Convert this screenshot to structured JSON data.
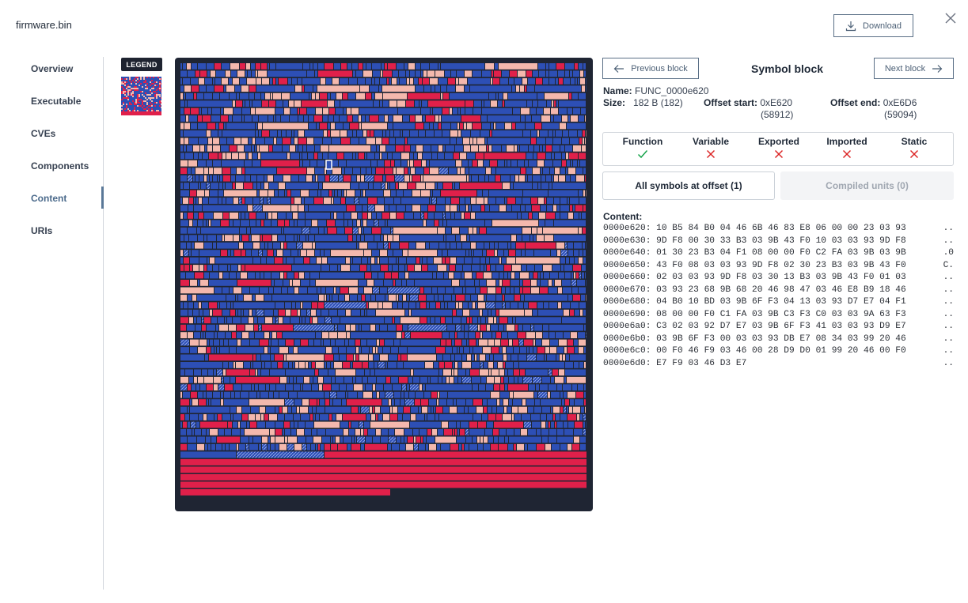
{
  "header": {
    "file_name": "firmware.bin",
    "download_label": "Download"
  },
  "sidebar": {
    "items": [
      {
        "label": "Overview",
        "active": false
      },
      {
        "label": "Executable",
        "active": false
      },
      {
        "label": "CVEs",
        "active": false
      },
      {
        "label": "Components",
        "active": false
      },
      {
        "label": "Content",
        "active": true
      },
      {
        "label": "URIs",
        "active": false
      }
    ]
  },
  "legend": {
    "label": "LEGEND"
  },
  "colors": {
    "function_block": "#2d4fb5",
    "variable_block": "#e0204a",
    "data_block": "#f4b8ad",
    "map_background": "#1f2533",
    "check": "#16a34a",
    "cross": "#dc2626"
  },
  "block": {
    "title": "Symbol block",
    "prev_label": "Previous block",
    "next_label": "Next block",
    "name_label": "Name:",
    "name_value": "FUNC_0000e620",
    "size_label": "Size:",
    "size_value": "182 B (182)",
    "offset_start_label": "Offset start:",
    "offset_start_hex": "0xE620",
    "offset_start_dec": "(58912)",
    "offset_end_label": "Offset end:",
    "offset_end_hex": "0xE6D6",
    "offset_end_dec": "(59094)"
  },
  "flags": [
    {
      "label": "Function",
      "value": true
    },
    {
      "label": "Variable",
      "value": false
    },
    {
      "label": "Exported",
      "value": false
    },
    {
      "label": "Imported",
      "value": false
    },
    {
      "label": "Static",
      "value": false
    }
  ],
  "tabs": {
    "all_symbols": "All symbols at offset (1)",
    "compiled_units": "Compiled units (0)"
  },
  "content": {
    "label": "Content:",
    "rows": [
      {
        "offset": "0000e620:",
        "bytes": "10 B5 84 B0 04 46 6B 46 83 E8 06 00 00 23 03 93",
        "ascii": ".."
      },
      {
        "offset": "0000e630:",
        "bytes": "9D F8 00 30 33 B3 03 9B 43 F0 10 03 03 93 9D F8",
        "ascii": ".."
      },
      {
        "offset": "0000e640:",
        "bytes": "01 30 23 B3 04 F1 08 00 00 F0 C2 FA 03 9B 03 9B",
        "ascii": ".0"
      },
      {
        "offset": "0000e650:",
        "bytes": "43 F0 08 03 03 93 9D F8 02 30 23 B3 03 9B 43 F0",
        "ascii": "C."
      },
      {
        "offset": "0000e660:",
        "bytes": "02 03 03 93 9D F8 03 30 13 B3 03 9B 43 F0 01 03",
        "ascii": ".."
      },
      {
        "offset": "0000e670:",
        "bytes": "03 93 23 68 9B 68 20 46 98 47 03 46 E8 B9 18 46",
        "ascii": ".."
      },
      {
        "offset": "0000e680:",
        "bytes": "04 B0 10 BD 03 9B 6F F3 04 13 03 93 D7 E7 04 F1",
        "ascii": ".."
      },
      {
        "offset": "0000e690:",
        "bytes": "08 00 00 F0 C1 FA 03 9B C3 F3 C0 03 03 9A 63 F3",
        "ascii": ".."
      },
      {
        "offset": "0000e6a0:",
        "bytes": "C3 02 03 92 D7 E7 03 9B 6F F3 41 03 03 93 D9 E7",
        "ascii": ".."
      },
      {
        "offset": "0000e6b0:",
        "bytes": "03 9B 6F F3 00 03 03 93 DB E7 08 34 03 99 20 46",
        "ascii": ".."
      },
      {
        "offset": "0000e6c0:",
        "bytes": "00 F0 46 F9 03 46 00 28 D9 D0 01 99 20 46 00 F0",
        "ascii": ".."
      },
      {
        "offset": "0000e6d0:",
        "bytes": "E7 F9 03 46 D3 E7",
        "ascii": ".."
      }
    ]
  }
}
